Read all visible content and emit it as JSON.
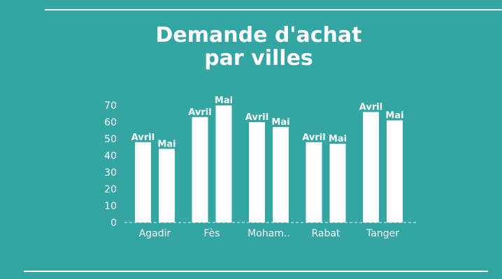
{
  "title_line1": "Demande d'achat",
  "title_line2": "par villes",
  "colors": {
    "background": "#33a6a4",
    "bars": "#ffffff",
    "text": "#ffffff"
  },
  "chart_data": {
    "type": "bar",
    "categories": [
      "Agadir",
      "Fès",
      "Moham..",
      "Rabat",
      "Tanger"
    ],
    "series": [
      {
        "name": "Avril",
        "values": [
          48,
          63,
          60,
          48,
          66
        ]
      },
      {
        "name": "Mai",
        "values": [
          44,
          70,
          57,
          47,
          61
        ]
      }
    ],
    "ylim": [
      0,
      70
    ],
    "yticks": [
      0,
      10,
      20,
      30,
      40,
      50,
      60,
      70
    ],
    "grid": false,
    "legend": "none",
    "bar_labels": "series name above each bar"
  }
}
